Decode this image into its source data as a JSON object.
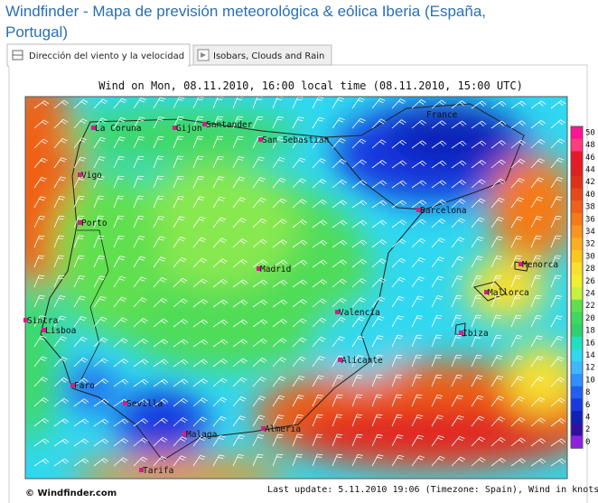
{
  "header": {
    "title_line1": "Windfinder - Mapa de previsión meteorológica & eólica Iberia (España,",
    "title_line2": "Portugal)"
  },
  "tabs": [
    "Dirección del viento y la velocidad",
    "Isobars, Clouds and Rain"
  ],
  "map": {
    "heading": "Wind on Mon, 08.11.2010, 16:00 local time (08.11.2010, 15:00 UTC)",
    "places": [
      "France",
      "La Coruna",
      "Gijon",
      "Santander",
      "San Sebastian",
      "Vigo",
      "Porto",
      "Barcelona",
      "Madrid",
      "Menorca",
      "Mallorca",
      "Sintra",
      "Lisboa",
      "Valencia",
      "Ibiza",
      "Alicante",
      "Faro",
      "Sevilla",
      "Almeria",
      "Malaga",
      "Tarifa"
    ]
  },
  "legend": {
    "levels": [
      50,
      48,
      46,
      44,
      42,
      40,
      38,
      36,
      34,
      32,
      30,
      28,
      26,
      24,
      22,
      20,
      18,
      16,
      14,
      12,
      10,
      8,
      6,
      4,
      2,
      0
    ],
    "colors": [
      "#ff1493",
      "#ff3c82",
      "#e8182a",
      "#e02020",
      "#e03018",
      "#e84818",
      "#f06018",
      "#f57a18",
      "#f89420",
      "#fbae20",
      "#fcc820",
      "#f8e030",
      "#f0f030",
      "#c8f040",
      "#60e050",
      "#40d860",
      "#30d070",
      "#20e0c0",
      "#30d8f0",
      "#40b8ff",
      "#3090ff",
      "#2060f0",
      "#1838e0",
      "#1020b8",
      "#3010a0",
      "#9020e0"
    ]
  },
  "footer": {
    "credit": "© Windfinder.com",
    "update": "Last update: 5.11.2010 19:06 (Timezone: Spain), Wind in knots"
  }
}
